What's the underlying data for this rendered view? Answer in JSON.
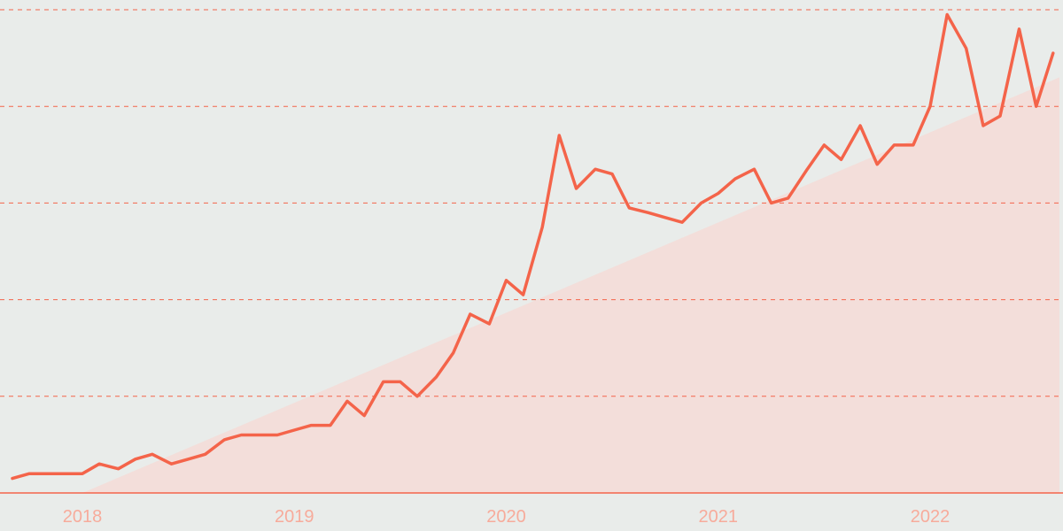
{
  "chart_data": {
    "type": "line",
    "title": "",
    "xlabel": "",
    "ylabel": "",
    "x_ticks": [
      "2018",
      "2019",
      "2020",
      "2021",
      "2022"
    ],
    "x_range": [
      2017.67,
      2022.61
    ],
    "ylim": [
      0,
      100
    ],
    "y_tick_values": [
      20,
      40,
      60,
      80,
      100
    ],
    "grid": true,
    "grid_axis": "y",
    "grid_style": "dashed",
    "legend": "none",
    "colors": {
      "background": "#e9ecea",
      "line": "#f4644a",
      "gridline": "#f4644a",
      "axis": "#f4644a",
      "tick_label": "#f7ab9b",
      "area": "#fbd3cc"
    },
    "background_area": {
      "description": "light trend wedge",
      "points": [
        [
          2018.0,
          0
        ],
        [
          2022.61,
          86
        ],
        [
          2022.61,
          0
        ]
      ]
    },
    "series": [
      {
        "x": [
          2017.67,
          2017.75,
          2017.83,
          2017.92,
          2018.0,
          2018.08,
          2018.17,
          2018.25,
          2018.33,
          2018.42,
          2018.5,
          2018.58,
          2018.67,
          2018.75,
          2018.83,
          2018.92,
          2019.0,
          2019.08,
          2019.17,
          2019.25,
          2019.33,
          2019.42,
          2019.5,
          2019.58,
          2019.67,
          2019.75,
          2019.83,
          2019.92,
          2020.0,
          2020.08,
          2020.17,
          2020.25,
          2020.33,
          2020.42,
          2020.5,
          2020.58,
          2020.67,
          2020.75,
          2020.83,
          2020.92,
          2021.0,
          2021.08,
          2021.17,
          2021.25,
          2021.33,
          2021.42,
          2021.5,
          2021.58,
          2021.67,
          2021.75,
          2021.83,
          2021.92,
          2022.0,
          2022.08,
          2022.17,
          2022.25,
          2022.33,
          2022.42,
          2022.5,
          2022.58
        ],
        "values": [
          3,
          4,
          4,
          4,
          4,
          6,
          5,
          7,
          8,
          6,
          7,
          8,
          11,
          12,
          12,
          12,
          13,
          14,
          14,
          19,
          16,
          23,
          23,
          20,
          24,
          29,
          37,
          35,
          44,
          41,
          55,
          74,
          63,
          67,
          66,
          59,
          58,
          57,
          56,
          60,
          62,
          65,
          67,
          60,
          61,
          67,
          72,
          69,
          76,
          68,
          72,
          72,
          80,
          99,
          92,
          76,
          78,
          96,
          80,
          91
        ]
      }
    ]
  }
}
